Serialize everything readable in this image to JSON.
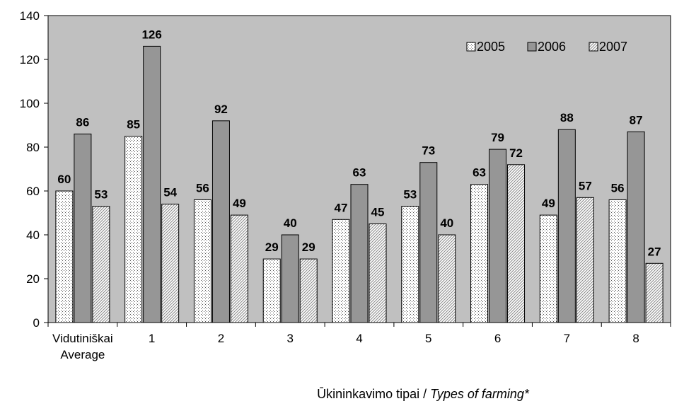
{
  "chart_data": {
    "type": "bar",
    "categories": [
      [
        "Vidutiniškai",
        "Average"
      ],
      [
        "1"
      ],
      [
        "2"
      ],
      [
        "3"
      ],
      [
        "4"
      ],
      [
        "5"
      ],
      [
        "6"
      ],
      [
        "7"
      ],
      [
        "8"
      ]
    ],
    "series": [
      {
        "name": "2005",
        "values": [
          60,
          85,
          56,
          29,
          47,
          53,
          63,
          49,
          56
        ]
      },
      {
        "name": "2006",
        "values": [
          86,
          126,
          92,
          40,
          63,
          73,
          79,
          88,
          87
        ]
      },
      {
        "name": "2007",
        "values": [
          53,
          54,
          49,
          29,
          45,
          40,
          72,
          57,
          27
        ]
      }
    ],
    "xlabel": {
      "main": "Ūkininkavimo tipai / ",
      "italic": "Types of farming*"
    },
    "ylabel": "",
    "ylim": [
      0,
      140
    ],
    "yticks": [
      0,
      20,
      40,
      60,
      80,
      100,
      120,
      140
    ],
    "legend_position": "top-right",
    "grid": false
  },
  "colors": {
    "plot_background": "#c0c0c0",
    "series_2005": "#ffffff",
    "series_2006": "#969696",
    "series_2007": "#ffffff"
  }
}
